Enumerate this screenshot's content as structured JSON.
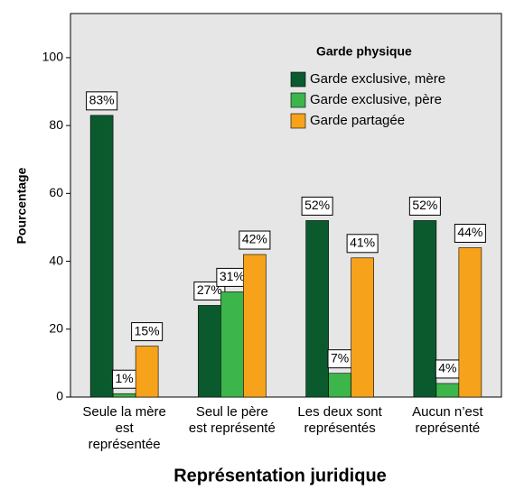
{
  "chart_data": {
    "type": "bar",
    "x_label": "Représentation juridique",
    "y_label": "Pourcentage",
    "legend_title": "Garde physique",
    "legend_position": "upper right",
    "grid": false,
    "categories": [
      "Seule la mère est représentée",
      "Seul le père est représenté",
      "Les deux sont représentés",
      "Aucun n’est représenté"
    ],
    "series": [
      {
        "name": "Garde exclusive, mère",
        "color": "#0b5a2e",
        "values": [
          83,
          27,
          52,
          52
        ],
        "value_labels": [
          "83%",
          "27%",
          "52%",
          "52%"
        ]
      },
      {
        "name": "Garde exclusive, père",
        "color": "#3cb54a",
        "values": [
          1,
          31,
          7,
          4
        ],
        "value_labels": [
          "1%",
          "31%",
          "7%",
          "4%"
        ]
      },
      {
        "name": "Garde partagée",
        "color": "#f7a21b",
        "values": [
          15,
          42,
          41,
          44
        ],
        "value_labels": [
          "15%",
          "42%",
          "41%",
          "44%"
        ]
      }
    ],
    "ylim": [
      0,
      113
    ],
    "yticks": [
      0,
      20,
      40,
      60,
      80,
      100
    ]
  }
}
